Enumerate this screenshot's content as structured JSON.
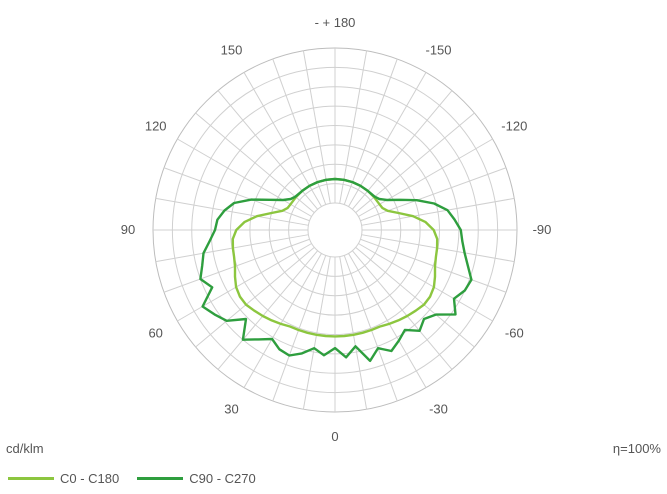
{
  "chart_data": {
    "type": "polar",
    "unit": "cd/klm",
    "efficiency": "η=100%",
    "angle_labels": [
      "- + 180",
      "150",
      "120",
      "90",
      "60",
      "30",
      "0",
      "-30",
      "-60",
      "-90",
      "-120",
      "-150"
    ],
    "radial_rings": 8,
    "grid": true,
    "legend_position": "bottom-left",
    "series": [
      {
        "name": "C0 - C180",
        "color": "#8cc63f",
        "angles": [
          -180,
          -170,
          -160,
          -150,
          -140,
          -130,
          -120,
          -115,
          -110,
          -105,
          -100,
          -95,
          -90,
          -85,
          -80,
          -75,
          -70,
          -65,
          -60,
          -55,
          -50,
          -45,
          -40,
          -35,
          -30,
          -25,
          -20,
          -15,
          -10,
          -5,
          0,
          5,
          10,
          15,
          20,
          25,
          30,
          35,
          40,
          45,
          50,
          55,
          60,
          65,
          70,
          75,
          80,
          85,
          90,
          95,
          100,
          105,
          110,
          115,
          120,
          130,
          140,
          150,
          160,
          170,
          180
        ],
        "values": [
          0.62,
          0.62,
          0.62,
          0.62,
          0.62,
          0.62,
          0.63,
          0.65,
          0.75,
          1.0,
          1.35,
          1.65,
          1.85,
          1.95,
          1.98,
          2.0,
          2.05,
          2.15,
          2.25,
          2.3,
          2.3,
          2.25,
          2.2,
          2.15,
          2.1,
          2.05,
          2.05,
          2.05,
          2.05,
          2.05,
          2.05,
          2.05,
          2.05,
          2.05,
          2.05,
          2.05,
          2.1,
          2.15,
          2.2,
          2.25,
          2.3,
          2.3,
          2.25,
          2.15,
          2.05,
          2.0,
          1.98,
          1.95,
          1.85,
          1.65,
          1.35,
          1.0,
          0.75,
          0.65,
          0.63,
          0.62,
          0.62,
          0.62,
          0.62,
          0.62,
          0.62
        ]
      },
      {
        "name": "C90 - C270",
        "color": "#2e9e3e",
        "angles": [
          -180,
          -170,
          -160,
          -150,
          -140,
          -130,
          -125,
          -120,
          -115,
          -110,
          -105,
          -100,
          -95,
          -90,
          -85,
          -80,
          -75,
          -70,
          -65,
          -60,
          -55,
          -50,
          -45,
          -40,
          -35,
          -30,
          -25,
          -20,
          -15,
          -10,
          -5,
          0,
          5,
          10,
          15,
          20,
          25,
          30,
          35,
          40,
          45,
          50,
          55,
          60,
          65,
          70,
          75,
          80,
          85,
          90,
          95,
          100,
          105,
          110,
          115,
          120,
          125,
          130,
          140,
          150,
          160,
          170,
          180
        ],
        "values": [
          0.62,
          0.62,
          0.62,
          0.62,
          0.62,
          0.64,
          0.7,
          0.85,
          1.15,
          1.55,
          1.95,
          2.25,
          2.4,
          2.55,
          2.6,
          2.7,
          2.85,
          3.05,
          3.0,
          2.85,
          3.1,
          2.7,
          2.55,
          2.7,
          2.45,
          2.6,
          2.75,
          2.55,
          2.8,
          2.35,
          2.6,
          2.35,
          2.55,
          2.4,
          2.6,
          2.75,
          2.7,
          2.55,
          2.75,
          3.0,
          2.55,
          2.95,
          3.1,
          3.25,
          2.8,
          3.0,
          2.85,
          2.75,
          2.55,
          2.4,
          2.35,
          2.2,
          2.0,
          1.6,
          1.15,
          0.85,
          0.7,
          0.64,
          0.62,
          0.62,
          0.62,
          0.62,
          0.62
        ]
      }
    ]
  }
}
